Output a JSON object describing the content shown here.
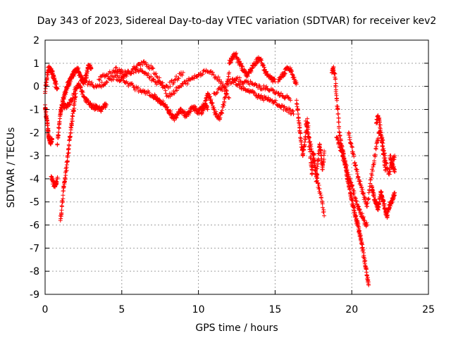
{
  "chart_data": {
    "type": "scatter",
    "title": "Day 343 of 2023, Sidereal Day-to-day VTEC variation (SDTVAR) for receiver kev2",
    "xlabel": "GPS time / hours",
    "ylabel": "SDTVAR / TECUs",
    "xlim": [
      0,
      25
    ],
    "ylim": [
      -9,
      2
    ],
    "xticks": [
      0,
      5,
      10,
      15,
      20,
      25
    ],
    "yticks": [
      -9,
      -8,
      -7,
      -6,
      -5,
      -4,
      -3,
      -2,
      -1,
      0,
      1,
      2
    ],
    "grid": true,
    "marker": "+",
    "color": "#ff0000",
    "series": [
      {
        "name": "SDTVAR",
        "tracks": [
          {
            "x": [
              0.0,
              0.1,
              0.2,
              0.3,
              0.4,
              0.5,
              0.6,
              0.7,
              0.8
            ],
            "y": [
              -0.3,
              0.3,
              0.7,
              0.8,
              0.7,
              0.5,
              0.3,
              0.1,
              -0.1
            ]
          },
          {
            "x": [
              0.0,
              0.05,
              0.1,
              0.15,
              0.2,
              0.25,
              0.3,
              0.35,
              0.4,
              0.45
            ],
            "y": [
              -0.8,
              -1.1,
              -1.4,
              -1.7,
              -2.0,
              -2.2,
              -2.3,
              -2.4,
              -2.4,
              -2.3
            ]
          },
          {
            "x": [
              0.4,
              0.5,
              0.6,
              0.7,
              0.8
            ],
            "y": [
              -3.9,
              -4.1,
              -4.3,
              -4.2,
              -4.0
            ]
          },
          {
            "x": [
              0.8,
              0.9,
              1.0,
              1.1,
              1.2,
              1.3,
              1.4,
              1.5,
              1.6,
              1.7,
              1.8,
              1.9,
              2.0,
              2.1,
              2.2,
              2.3,
              2.4,
              2.5,
              2.6,
              2.7,
              2.8,
              2.9,
              3.0
            ],
            "y": [
              -2.5,
              -1.8,
              -1.2,
              -0.8,
              -0.5,
              -0.3,
              -0.1,
              0.1,
              0.2,
              0.4,
              0.5,
              0.6,
              0.7,
              0.8,
              0.6,
              0.4,
              0.3,
              0.2,
              0.3,
              0.5,
              0.8,
              0.9,
              0.8
            ]
          },
          {
            "x": [
              1.0,
              1.1,
              1.2,
              1.3,
              1.4,
              1.5,
              1.6,
              1.7,
              1.8,
              1.9,
              2.0
            ],
            "y": [
              -5.8,
              -5.2,
              -4.4,
              -4.0,
              -3.5,
              -2.9,
              -2.3,
              -1.8,
              -1.3,
              -0.8,
              -0.3
            ]
          },
          {
            "x": [
              1.0,
              1.2,
              1.4,
              1.6,
              1.8,
              2.0,
              2.2,
              2.4,
              2.6,
              2.8,
              3.0,
              3.2,
              3.4,
              3.6,
              3.8,
              4.0
            ],
            "y": [
              -1.0,
              -0.8,
              -0.9,
              -0.7,
              -0.5,
              -0.1,
              0.1,
              -0.2,
              -0.5,
              -0.7,
              -0.8,
              -0.9,
              -0.9,
              -1.0,
              -0.9,
              -0.8
            ]
          },
          {
            "x": [
              2.5,
              3.0,
              3.5,
              4.0,
              4.5,
              5.0,
              5.5,
              6.0,
              6.5,
              7.0,
              7.2,
              7.4,
              7.6,
              7.8,
              8.0,
              8.2,
              8.4,
              8.6,
              8.8,
              9.0,
              9.2,
              9.4,
              9.6,
              9.8,
              10.0,
              10.2,
              10.4,
              10.6
            ],
            "y": [
              0.2,
              0.1,
              0.0,
              0.2,
              0.4,
              0.3,
              0.1,
              -0.1,
              -0.2,
              -0.4,
              -0.5,
              -0.6,
              -0.7,
              -0.8,
              -1.0,
              -1.2,
              -1.4,
              -1.2,
              -1.0,
              -1.1,
              -1.3,
              -1.1,
              -0.9,
              -1.0,
              -1.1,
              -0.9,
              -0.8,
              -1.0
            ]
          },
          {
            "x": [
              3.5,
              4.0,
              4.5,
              5.0,
              5.5,
              6.0,
              6.5,
              7.0,
              7.5,
              8.0,
              8.5,
              9.0,
              9.5,
              10.0,
              10.5,
              11.0,
              11.5,
              12.0
            ],
            "y": [
              0.3,
              0.5,
              0.6,
              0.4,
              0.6,
              0.9,
              1.0,
              0.8,
              0.2,
              -0.4,
              -0.2,
              0.1,
              0.3,
              0.5,
              0.7,
              0.5,
              0.2,
              -0.5
            ]
          },
          {
            "x": [
              4.6,
              5.0,
              5.5,
              6.0,
              6.5,
              7.0,
              7.5,
              8.0,
              8.5,
              9.0
            ],
            "y": [
              0.8,
              0.6,
              0.6,
              0.7,
              0.6,
              0.3,
              0.1,
              0.0,
              0.3,
              0.6
            ]
          },
          {
            "x": [
              10.2,
              10.4,
              10.6,
              10.8,
              11.0,
              11.2,
              11.4,
              11.6,
              11.8,
              12.0
            ],
            "y": [
              -1.2,
              -0.8,
              -0.3,
              -0.6,
              -1.0,
              -1.3,
              -1.4,
              -0.9,
              -0.3,
              0.6
            ]
          },
          {
            "x": [
              12.0,
              12.2,
              12.4,
              12.6,
              12.8,
              13.0,
              13.2,
              13.4,
              13.6,
              13.8,
              14.0,
              14.2,
              14.4,
              14.6,
              14.8,
              15.0
            ],
            "y": [
              1.0,
              1.2,
              1.4,
              1.1,
              0.9,
              0.6,
              0.5,
              0.7,
              0.9,
              1.1,
              1.2,
              0.9,
              0.6,
              0.4,
              0.3,
              0.2
            ]
          },
          {
            "x": [
              11.0,
              11.5,
              12.0,
              12.5,
              13.0,
              13.5,
              14.0,
              14.5,
              15.0,
              15.5,
              16.0
            ],
            "y": [
              -0.3,
              -0.1,
              0.2,
              0.3,
              0.2,
              0.1,
              0.0,
              -0.1,
              -0.3,
              -0.4,
              -0.6
            ]
          },
          {
            "x": [
              12.2,
              12.6,
              13.0,
              13.4,
              13.8,
              14.2,
              14.6,
              15.0,
              15.4,
              15.8,
              16.2
            ],
            "y": [
              0.3,
              0.1,
              -0.1,
              -0.2,
              -0.4,
              -0.5,
              -0.6,
              -0.7,
              -0.9,
              -1.0,
              -1.2
            ]
          },
          {
            "x": [
              15.2,
              15.4,
              15.6,
              15.8,
              16.0,
              16.2,
              16.4
            ],
            "y": [
              0.2,
              0.4,
              0.6,
              0.8,
              0.7,
              0.4,
              0.1
            ]
          },
          {
            "x": [
              16.4,
              16.5,
              16.6,
              16.7,
              16.8,
              16.9,
              17.0,
              17.1,
              17.2,
              17.3,
              17.4,
              17.5,
              17.6,
              17.7,
              17.8,
              17.9,
              18.0,
              18.1,
              18.2
            ],
            "y": [
              -0.6,
              -1.2,
              -1.8,
              -2.4,
              -3.0,
              -2.6,
              -2.0,
              -1.4,
              -2.2,
              -3.1,
              -3.8,
              -2.9,
              -3.4,
              -4.1,
              -3.2,
              -2.5,
              -3.0,
              -3.6,
              -2.8
            ]
          },
          {
            "x": [
              17.0,
              17.2,
              17.4,
              17.6,
              17.8,
              18.0,
              18.2
            ],
            "y": [
              -1.5,
              -2.2,
              -2.8,
              -3.5,
              -4.2,
              -4.8,
              -5.6
            ]
          },
          {
            "x": [
              18.7,
              18.8,
              18.9,
              19.0,
              19.1,
              19.2,
              19.3,
              19.4,
              19.5,
              19.6,
              19.7,
              19.8,
              19.9,
              20.0,
              20.1,
              20.2,
              20.3,
              20.4,
              20.5,
              20.6,
              20.7,
              20.8,
              20.9,
              21.0,
              21.1
            ],
            "y": [
              0.6,
              0.8,
              0.4,
              -0.4,
              -1.2,
              -2.0,
              -2.5,
              -2.8,
              -3.1,
              -3.5,
              -3.9,
              -4.2,
              -4.6,
              -4.9,
              -5.2,
              -5.5,
              -5.8,
              -6.0,
              -6.3,
              -6.6,
              -7.0,
              -7.4,
              -7.8,
              -8.2,
              -8.6
            ]
          },
          {
            "x": [
              19.0,
              19.2,
              19.4,
              19.6,
              19.8,
              20.0,
              20.2,
              20.4,
              20.6,
              20.8,
              21.0
            ],
            "y": [
              -2.2,
              -2.6,
              -3.0,
              -3.4,
              -3.9,
              -4.3,
              -4.8,
              -5.2,
              -5.5,
              -5.8,
              -6.0
            ]
          },
          {
            "x": [
              19.8,
              20.0,
              20.2,
              20.4,
              20.6,
              20.8,
              21.0,
              21.2,
              21.4,
              21.6,
              21.8,
              22.0,
              22.2,
              22.4,
              22.6,
              22.8
            ],
            "y": [
              -2.0,
              -2.6,
              -3.3,
              -3.9,
              -4.3,
              -4.8,
              -5.2,
              -4.2,
              -3.4,
              -2.6,
              -2.0,
              -2.3,
              -3.2,
              -3.8,
              -3.4,
              -3.0
            ]
          },
          {
            "x": [
              21.3,
              21.4,
              21.5,
              21.6,
              21.7,
              21.8,
              21.9,
              22.0,
              22.1,
              22.2,
              22.3,
              22.4,
              22.5,
              22.6,
              22.7,
              22.8
            ],
            "y": [
              -4.3,
              -4.6,
              -4.9,
              -5.1,
              -5.3,
              -5.0,
              -4.6,
              -4.8,
              -5.1,
              -5.4,
              -5.6,
              -5.3,
              -5.1,
              -5.0,
              -4.8,
              -4.6
            ]
          },
          {
            "x": [
              21.6,
              21.7,
              21.8,
              21.9,
              22.0,
              22.1,
              22.2
            ],
            "y": [
              -1.6,
              -1.3,
              -1.5,
              -2.0,
              -2.6,
              -3.1,
              -3.6
            ]
          },
          {
            "x": [
              22.5,
              22.6,
              22.7,
              22.8
            ],
            "y": [
              -3.0,
              -3.3,
              -3.5,
              -3.7
            ]
          }
        ]
      }
    ]
  }
}
